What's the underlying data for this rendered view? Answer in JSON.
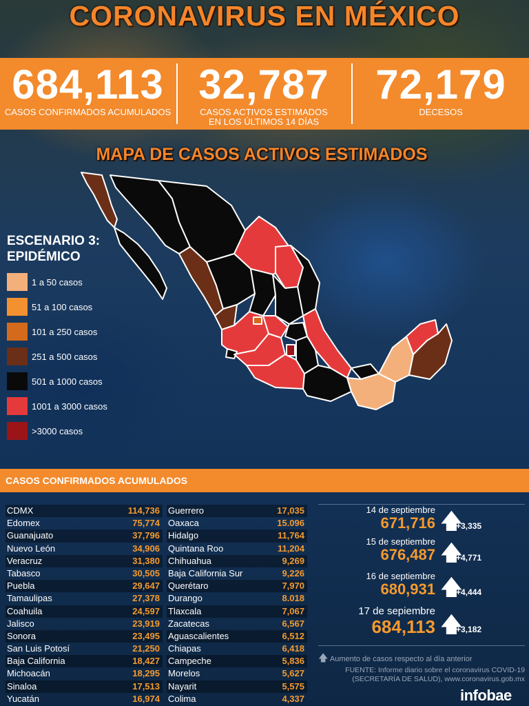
{
  "title": "CORONAVIRUS EN MÉXICO",
  "stats": [
    {
      "value": "684,113",
      "label": "CASOS CONFIRMADOS ACUMULADOS"
    },
    {
      "value": "32,787",
      "label_line1": "CASOS ACTIVOS ESTIMADOS",
      "label_line2": "EN LOS ÚLTIMOS 14 DÍAS"
    },
    {
      "value": "72,179",
      "label": "DECESOS"
    }
  ],
  "map_title": "MAPA DE CASOS ACTIVOS ESTIMADOS",
  "scenario": {
    "line1": "ESCENARIO 3:",
    "line2": "EPIDÉMICO"
  },
  "legend": [
    {
      "label": "1 a 50 casos",
      "color": "#f4b07a"
    },
    {
      "label": "51 a 100 casos",
      "color": "#f3902f"
    },
    {
      "label": "101 a 250 casos",
      "color": "#d46a1c"
    },
    {
      "label": "251 a 500 casos",
      "color": "#6b2f17"
    },
    {
      "label": "501 a 1000 casos",
      "color": "#0a0a0a"
    },
    {
      "label": "1001 a 3000 casos",
      "color": "#e53a3c"
    },
    {
      "label": ">3000 casos",
      "color": "#9b1418"
    }
  ],
  "table_title": "CASOS CONFIRMADOS ACUMULADOS",
  "table_left": [
    {
      "state": "CDMX",
      "cases": "114,736"
    },
    {
      "state": "Edomex",
      "cases": "75,774"
    },
    {
      "state": "Guanajuato",
      "cases": "37,796"
    },
    {
      "state": "Nuevo León",
      "cases": "34,906"
    },
    {
      "state": "Veracruz",
      "cases": "31,380"
    },
    {
      "state": "Tabasco",
      "cases": "30,505"
    },
    {
      "state": "Puebla",
      "cases": "29,647"
    },
    {
      "state": "Tamaulipas",
      "cases": "27,378"
    },
    {
      "state": "Coahuila",
      "cases": "24,597"
    },
    {
      "state": "Jalisco",
      "cases": "23,919"
    },
    {
      "state": "Sonora",
      "cases": "23,495"
    },
    {
      "state": "San Luis Potosí",
      "cases": "21,250"
    },
    {
      "state": "Baja California",
      "cases": "18,427"
    },
    {
      "state": "Michoacán",
      "cases": "18,295"
    },
    {
      "state": "Sinaloa",
      "cases": "17,513"
    },
    {
      "state": "Yucatán",
      "cases": "16,974"
    }
  ],
  "table_right": [
    {
      "state": "Guerrero",
      "cases": "17,035"
    },
    {
      "state": "Oaxaca",
      "cases": "15.096"
    },
    {
      "state": "Hidalgo",
      "cases": "11,764"
    },
    {
      "state": "Quintana Roo",
      "cases": "11,204"
    },
    {
      "state": "Chihuahua",
      "cases": "9,269"
    },
    {
      "state": "Baja California Sur",
      "cases": "9,226"
    },
    {
      "state": "Querétaro",
      "cases": "7,970"
    },
    {
      "state": "Durango",
      "cases": "8.018"
    },
    {
      "state": "Tlaxcala",
      "cases": "7,067"
    },
    {
      "state": "Zacatecas",
      "cases": "6,567"
    },
    {
      "state": "Aguascalientes",
      "cases": "6,512"
    },
    {
      "state": "Chiapas",
      "cases": "6,418"
    },
    {
      "state": "Campeche",
      "cases": "5,836"
    },
    {
      "state": "Morelos",
      "cases": "5,627"
    },
    {
      "state": "Nayarit",
      "cases": "5,575"
    },
    {
      "state": "Colima",
      "cases": "4,337"
    }
  ],
  "daily": [
    {
      "date": "14 de septiembre",
      "total": "671,716",
      "increase": "+3,335"
    },
    {
      "date": "15 de septiembre",
      "total": "676,487",
      "increase": "+4,771"
    },
    {
      "date": "16 de septiembre",
      "total": "680,931",
      "increase": "+4,444"
    },
    {
      "date": "17 de sepiembre",
      "total": "684,113",
      "increase": "+3,182"
    }
  ],
  "increase_note": "Aumento de casos respecto al día anterior",
  "source_line1": "FUENTE:  Informe diario sobre el coronavirus COVID-19",
  "source_line2": "(SECRETARÍA DE SALUD), www.coronavirus.gob.mx",
  "logo": "infobae"
}
